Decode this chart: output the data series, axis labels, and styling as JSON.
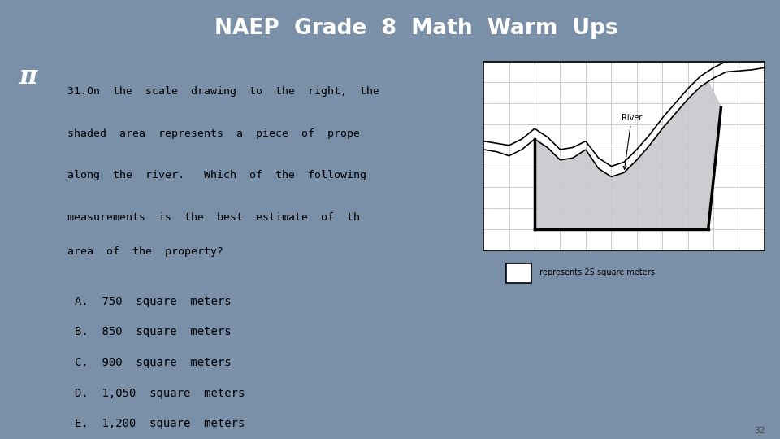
{
  "title": "NAEP  Grade  8  Math  Warm  Ups",
  "title_bg": "#6b82a0",
  "title_color": "white",
  "slide_bg": "#7a8fa8",
  "content_bg": "white",
  "left_bar_bg": "#8a9fb8",
  "pi_box_bg": "#5a6f88",
  "pi_symbol": "π",
  "question_lines": [
    "31.On  the  scale  drawing  to  the  right,  the",
    "shaded  area  represents  a  piece  of  prope",
    "along  the  river.   Which  of  the  following",
    "measurements  is  the  best  estimate  of  th",
    "area  of  the  property?"
  ],
  "choices": [
    "A.  750  square  meters",
    "B.  850  square  meters",
    "C.  900  square  meters",
    "D.  1,050  square  meters",
    "E.  1,200  square  meters"
  ],
  "page_number": "32",
  "legend_text": " represents 25 square meters",
  "river_label": "River",
  "map_grid_color": "#bbbbbb",
  "shade_color": "#c8c8cc",
  "river_line_color": "black"
}
